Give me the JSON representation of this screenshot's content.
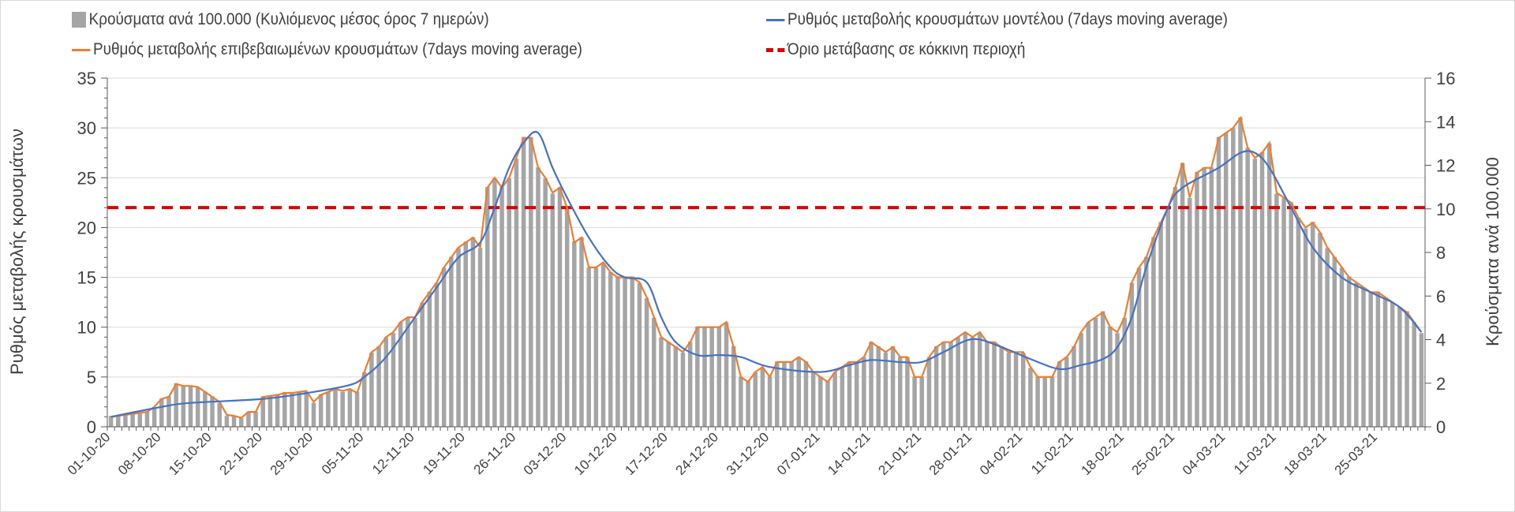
{
  "chart_data": {
    "type": "bar+line",
    "legend": [
      {
        "label": "Κρούσματα ανά 100.000 (Κυλιόμενος μέσος όρος 7 ημερών)",
        "kind": "bar",
        "color": "#a5a5a5"
      },
      {
        "label": "Ρυθμός μεταβολής κρουσμάτων μοντέλου (7days moving average)",
        "kind": "line",
        "color": "#4472c4"
      },
      {
        "label": "Ρυθμός μεταβολής επιβεβαιωμένων κρουσμάτων (7days moving average)",
        "kind": "line",
        "color": "#ed7d31"
      },
      {
        "label": "Όριο μετάβασης σε κόκκινη περιοχή",
        "kind": "dashed",
        "color": "#e00000"
      }
    ],
    "legend_placement": "top",
    "ylabel_left": "Ρυθμός μεταβολής κρουσμάτων",
    "ylabel_right": "Κρούσματα ανά 100.000",
    "ylim_left": [
      0,
      35
    ],
    "ylim_right": [
      0,
      16
    ],
    "yticks_left": [
      0,
      5,
      10,
      15,
      20,
      25,
      30,
      35
    ],
    "yticks_right": [
      0,
      2,
      4,
      6,
      8,
      10,
      12,
      14,
      16
    ],
    "grid": true,
    "start_date": "01-10-20",
    "x_tick_labels": [
      "01-10-20",
      "08-10-20",
      "15-10-20",
      "22-10-20",
      "29-10-20",
      "05-11-20",
      "12-11-20",
      "19-11-20",
      "26-11-20",
      "03-12-20",
      "10-12-20",
      "17-12-20",
      "24-12-20",
      "31-12-20",
      "07-01-21",
      "14-01-21",
      "21-01-21",
      "28-01-21",
      "04-02-21",
      "11-02-21",
      "18-02-21",
      "25-02-21",
      "04-03-21",
      "11-03-21",
      "18-03-21",
      "25-03-21"
    ],
    "red_threshold_left": 22,
    "bars_per_100k": [
      0.5,
      0.5,
      0.6,
      0.6,
      0.6,
      0.7,
      0.9,
      1.3,
      1.4,
      2.0,
      1.9,
      1.9,
      1.8,
      1.6,
      1.4,
      1.1,
      0.5,
      0.5,
      0.4,
      0.7,
      0.7,
      1.4,
      1.4,
      1.5,
      1.6,
      1.6,
      1.6,
      1.6,
      1.1,
      1.5,
      1.6,
      1.7,
      1.6,
      1.7,
      1.6,
      2.5,
      3.4,
      3.7,
      4.1,
      4.3,
      4.8,
      5.0,
      5.0,
      5.7,
      6.2,
      6.6,
      7.3,
      7.8,
      8.2,
      8.5,
      8.7,
      8.2,
      11.0,
      11.4,
      11.0,
      11.4,
      12.3,
      13.3,
      13.3,
      11.9,
      11.4,
      10.7,
      11.0,
      10.1,
      8.5,
      8.7,
      7.3,
      7.3,
      7.5,
      7.1,
      6.9,
      6.9,
      6.9,
      6.6,
      5.9,
      5.0,
      4.1,
      3.9,
      3.7,
      3.4,
      3.9,
      4.6,
      4.6,
      4.6,
      4.6,
      4.8,
      3.7,
      2.3,
      2.1,
      2.5,
      2.7,
      2.3,
      3.0,
      3.0,
      3.0,
      3.2,
      3.0,
      2.5,
      2.3,
      2.1,
      2.5,
      2.7,
      3.0,
      3.0,
      3.2,
      3.9,
      3.7,
      3.4,
      3.7,
      3.2,
      3.2,
      2.3,
      2.3,
      3.2,
      3.7,
      3.9,
      3.9,
      4.1,
      4.3,
      4.1,
      4.3,
      3.9,
      3.9,
      3.7,
      3.4,
      3.4,
      3.4,
      2.7,
      2.3,
      2.3,
      2.3,
      3.0,
      3.2,
      3.7,
      4.3,
      4.8,
      5.0,
      5.3,
      4.6,
      4.3,
      5.0,
      6.6,
      7.3,
      7.8,
      8.7,
      9.4,
      10.1,
      11.0,
      12.1,
      10.5,
      11.7,
      11.9,
      11.9,
      13.3,
      13.5,
      13.7,
      14.2,
      12.8,
      12.3,
      12.6,
      13.0,
      10.7,
      10.5,
      10.3,
      9.6,
      9.1,
      9.4,
      8.9,
      8.2,
      7.8,
      7.3,
      6.9,
      6.6,
      6.4,
      6.2,
      6.2,
      5.9,
      5.7,
      5.5,
      5.3,
      4.8,
      4.3
    ],
    "confirmed_rate": [
      1,
      1.1,
      1.2,
      1.3,
      1.4,
      1.5,
      2,
      2.8,
      3,
      4.3,
      4.1,
      4.1,
      4,
      3.5,
      3,
      2.5,
      1.2,
      1.1,
      0.9,
      1.5,
      1.5,
      3,
      3.1,
      3.2,
      3.4,
      3.4,
      3.5,
      3.6,
      2.5,
      3.2,
      3.5,
      3.8,
      3.6,
      3.8,
      3.4,
      5.5,
      7.5,
      8,
      9,
      9.5,
      10.5,
      11,
      11,
      12.5,
      13.5,
      14.5,
      16,
      17,
      18,
      18.5,
      19,
      18,
      24,
      25,
      24,
      25,
      27,
      29,
      29,
      26,
      25,
      23.5,
      24,
      22,
      18.5,
      19,
      16,
      16,
      16.5,
      15.5,
      15,
      15,
      15,
      14.5,
      13,
      11,
      9,
      8.5,
      8,
      7.5,
      8.5,
      10,
      10,
      10,
      10,
      10.5,
      8,
      5,
      4.5,
      5.5,
      6,
      5,
      6.5,
      6.5,
      6.5,
      7,
      6.5,
      5.5,
      5,
      4.5,
      5.5,
      6,
      6.5,
      6.5,
      7,
      8.5,
      8,
      7.5,
      8,
      7,
      7,
      5,
      5,
      7,
      8,
      8.5,
      8.5,
      9,
      9.5,
      9,
      9.5,
      8.5,
      8.5,
      8,
      7.5,
      7.5,
      7.5,
      6,
      5,
      5,
      5,
      6.5,
      7,
      8,
      9.5,
      10.5,
      11,
      11.5,
      10,
      9.5,
      11,
      14.5,
      16,
      17,
      19,
      20.5,
      22,
      24,
      26.5,
      23,
      25.5,
      26,
      26,
      29,
      29.5,
      30,
      31,
      28,
      27,
      27.5,
      28.5,
      23.5,
      23,
      22.5,
      21,
      20,
      20.5,
      19.5,
      18,
      17,
      16,
      15,
      14.5,
      14,
      13.5,
      13.5,
      13,
      12.5,
      12,
      11.5,
      10.5,
      9.5
    ],
    "model_rate_keypoints": [
      [
        0,
        1
      ],
      [
        7,
        2
      ],
      [
        11,
        2.4
      ],
      [
        21,
        2.8
      ],
      [
        28,
        3.5
      ],
      [
        33,
        4.2
      ],
      [
        35,
        5
      ],
      [
        38,
        7
      ],
      [
        42,
        11
      ],
      [
        45,
        14
      ],
      [
        48,
        17
      ],
      [
        51,
        18.5
      ],
      [
        53,
        22
      ],
      [
        55,
        26
      ],
      [
        57,
        28.5
      ],
      [
        59,
        29.5
      ],
      [
        61,
        26
      ],
      [
        63,
        23
      ],
      [
        66,
        19
      ],
      [
        69,
        16
      ],
      [
        71,
        15
      ],
      [
        74,
        14.5
      ],
      [
        76,
        11
      ],
      [
        78,
        8.5
      ],
      [
        81,
        7.2
      ],
      [
        84,
        7.2
      ],
      [
        87,
        7
      ],
      [
        91,
        6
      ],
      [
        98,
        5.5
      ],
      [
        102,
        6.2
      ],
      [
        105,
        6.7
      ],
      [
        109,
        6.5
      ],
      [
        112,
        6.5
      ],
      [
        115,
        7.5
      ],
      [
        119,
        8.8
      ],
      [
        123,
        8
      ],
      [
        127,
        6.8
      ],
      [
        131,
        5.8
      ],
      [
        134,
        6.2
      ],
      [
        137,
        6.8
      ],
      [
        139,
        8
      ],
      [
        141,
        11
      ],
      [
        143,
        16
      ],
      [
        146,
        22
      ],
      [
        148,
        24
      ],
      [
        153,
        26
      ],
      [
        156,
        27.5
      ],
      [
        158,
        27.5
      ],
      [
        160,
        26
      ],
      [
        163,
        22
      ],
      [
        166,
        18
      ],
      [
        170,
        15
      ],
      [
        174,
        13.5
      ],
      [
        178,
        12
      ],
      [
        181,
        9.5
      ]
    ]
  }
}
